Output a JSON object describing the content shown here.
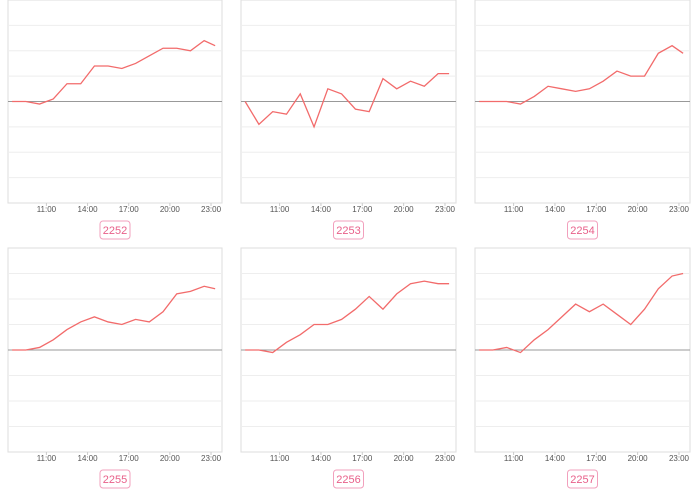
{
  "chart_data": [
    {
      "type": "line",
      "title": "2252",
      "color": "#f26b6b",
      "xlim": [
        8.2,
        23.8
      ],
      "ylim": [
        -4,
        4
      ],
      "xticks": [
        {
          "value": 11,
          "label": "11:00"
        },
        {
          "value": 14,
          "label": "14:00"
        },
        {
          "value": 17,
          "label": "17:00"
        },
        {
          "value": 20,
          "label": "20:00"
        },
        {
          "value": 23,
          "label": "23:00"
        }
      ],
      "x": [
        8.5,
        9.5,
        10.5,
        11.5,
        12.5,
        13.5,
        14.5,
        15.5,
        16.5,
        17.5,
        18.5,
        19.5,
        20.5,
        21.5,
        22.5,
        23.3
      ],
      "values": [
        0,
        0,
        -0.1,
        0.1,
        0.7,
        0.7,
        1.4,
        1.4,
        1.3,
        1.5,
        1.8,
        2.1,
        2.1,
        2.0,
        2.4,
        2.2
      ]
    },
    {
      "type": "line",
      "title": "2253",
      "color": "#f26b6b",
      "xlim": [
        8.2,
        23.8
      ],
      "ylim": [
        -4,
        4
      ],
      "xticks": [
        {
          "value": 11,
          "label": "11:00"
        },
        {
          "value": 14,
          "label": "14:00"
        },
        {
          "value": 17,
          "label": "17:00"
        },
        {
          "value": 20,
          "label": "20:00"
        },
        {
          "value": 23,
          "label": "23:00"
        }
      ],
      "x": [
        8.5,
        9.5,
        10.5,
        11.5,
        12.5,
        13.5,
        14.5,
        15.5,
        16.5,
        17.5,
        18.5,
        19.5,
        20.5,
        21.5,
        22.5,
        23.3
      ],
      "values": [
        0,
        -0.9,
        -0.4,
        -0.5,
        0.3,
        -1.0,
        0.5,
        0.3,
        -0.3,
        -0.4,
        0.9,
        0.5,
        0.8,
        0.6,
        1.1,
        1.1
      ]
    },
    {
      "type": "line",
      "title": "2254",
      "color": "#f26b6b",
      "xlim": [
        8.2,
        23.8
      ],
      "ylim": [
        -4,
        4
      ],
      "xticks": [
        {
          "value": 11,
          "label": "11:00"
        },
        {
          "value": 14,
          "label": "14:00"
        },
        {
          "value": 17,
          "label": "17:00"
        },
        {
          "value": 20,
          "label": "20:00"
        },
        {
          "value": 23,
          "label": "23:00"
        }
      ],
      "x": [
        8.5,
        9.5,
        10.5,
        11.5,
        12.5,
        13.5,
        14.5,
        15.5,
        16.5,
        17.5,
        18.5,
        19.5,
        20.5,
        21.5,
        22.5,
        23.3
      ],
      "values": [
        0,
        0,
        0,
        -0.1,
        0.2,
        0.6,
        0.5,
        0.4,
        0.5,
        0.8,
        1.2,
        1.0,
        1.0,
        1.9,
        2.2,
        1.9
      ]
    },
    {
      "type": "line",
      "title": "2255",
      "color": "#f26b6b",
      "xlim": [
        8.2,
        23.8
      ],
      "ylim": [
        -4,
        4
      ],
      "xticks": [
        {
          "value": 11,
          "label": "11:00"
        },
        {
          "value": 14,
          "label": "14:00"
        },
        {
          "value": 17,
          "label": "17:00"
        },
        {
          "value": 20,
          "label": "20:00"
        },
        {
          "value": 23,
          "label": "23:00"
        }
      ],
      "x": [
        8.5,
        9.5,
        10.5,
        11.5,
        12.5,
        13.5,
        14.5,
        15.5,
        16.5,
        17.5,
        18.5,
        19.5,
        20.5,
        21.5,
        22.5,
        23.3
      ],
      "values": [
        0,
        0,
        0.1,
        0.4,
        0.8,
        1.1,
        1.3,
        1.1,
        1.0,
        1.2,
        1.1,
        1.5,
        2.2,
        2.3,
        2.5,
        2.4
      ]
    },
    {
      "type": "line",
      "title": "2256",
      "color": "#f26b6b",
      "xlim": [
        8.2,
        23.8
      ],
      "ylim": [
        -4,
        4
      ],
      "xticks": [
        {
          "value": 11,
          "label": "11:00"
        },
        {
          "value": 14,
          "label": "14:00"
        },
        {
          "value": 17,
          "label": "17:00"
        },
        {
          "value": 20,
          "label": "20:00"
        },
        {
          "value": 23,
          "label": "23:00"
        }
      ],
      "x": [
        8.5,
        9.5,
        10.5,
        11.5,
        12.5,
        13.5,
        14.5,
        15.5,
        16.5,
        17.5,
        18.5,
        19.5,
        20.5,
        21.5,
        22.5,
        23.3
      ],
      "values": [
        0,
        0,
        -0.1,
        0.3,
        0.6,
        1.0,
        1.0,
        1.2,
        1.6,
        2.1,
        1.6,
        2.2,
        2.6,
        2.7,
        2.6,
        2.6
      ]
    },
    {
      "type": "line",
      "title": "2257",
      "color": "#f26b6b",
      "xlim": [
        8.2,
        23.8
      ],
      "ylim": [
        -4,
        4
      ],
      "xticks": [
        {
          "value": 11,
          "label": "11:00"
        },
        {
          "value": 14,
          "label": "14:00"
        },
        {
          "value": 17,
          "label": "17:00"
        },
        {
          "value": 20,
          "label": "20:00"
        },
        {
          "value": 23,
          "label": "23:00"
        }
      ],
      "x": [
        8.5,
        9.5,
        10.5,
        11.5,
        12.5,
        13.5,
        14.5,
        15.5,
        16.5,
        17.5,
        18.5,
        19.5,
        20.5,
        21.5,
        22.5,
        23.3
      ],
      "values": [
        0,
        0,
        0.1,
        -0.1,
        0.4,
        0.8,
        1.3,
        1.8,
        1.5,
        1.8,
        1.4,
        1.0,
        1.6,
        2.4,
        2.9,
        3.0
      ]
    }
  ]
}
